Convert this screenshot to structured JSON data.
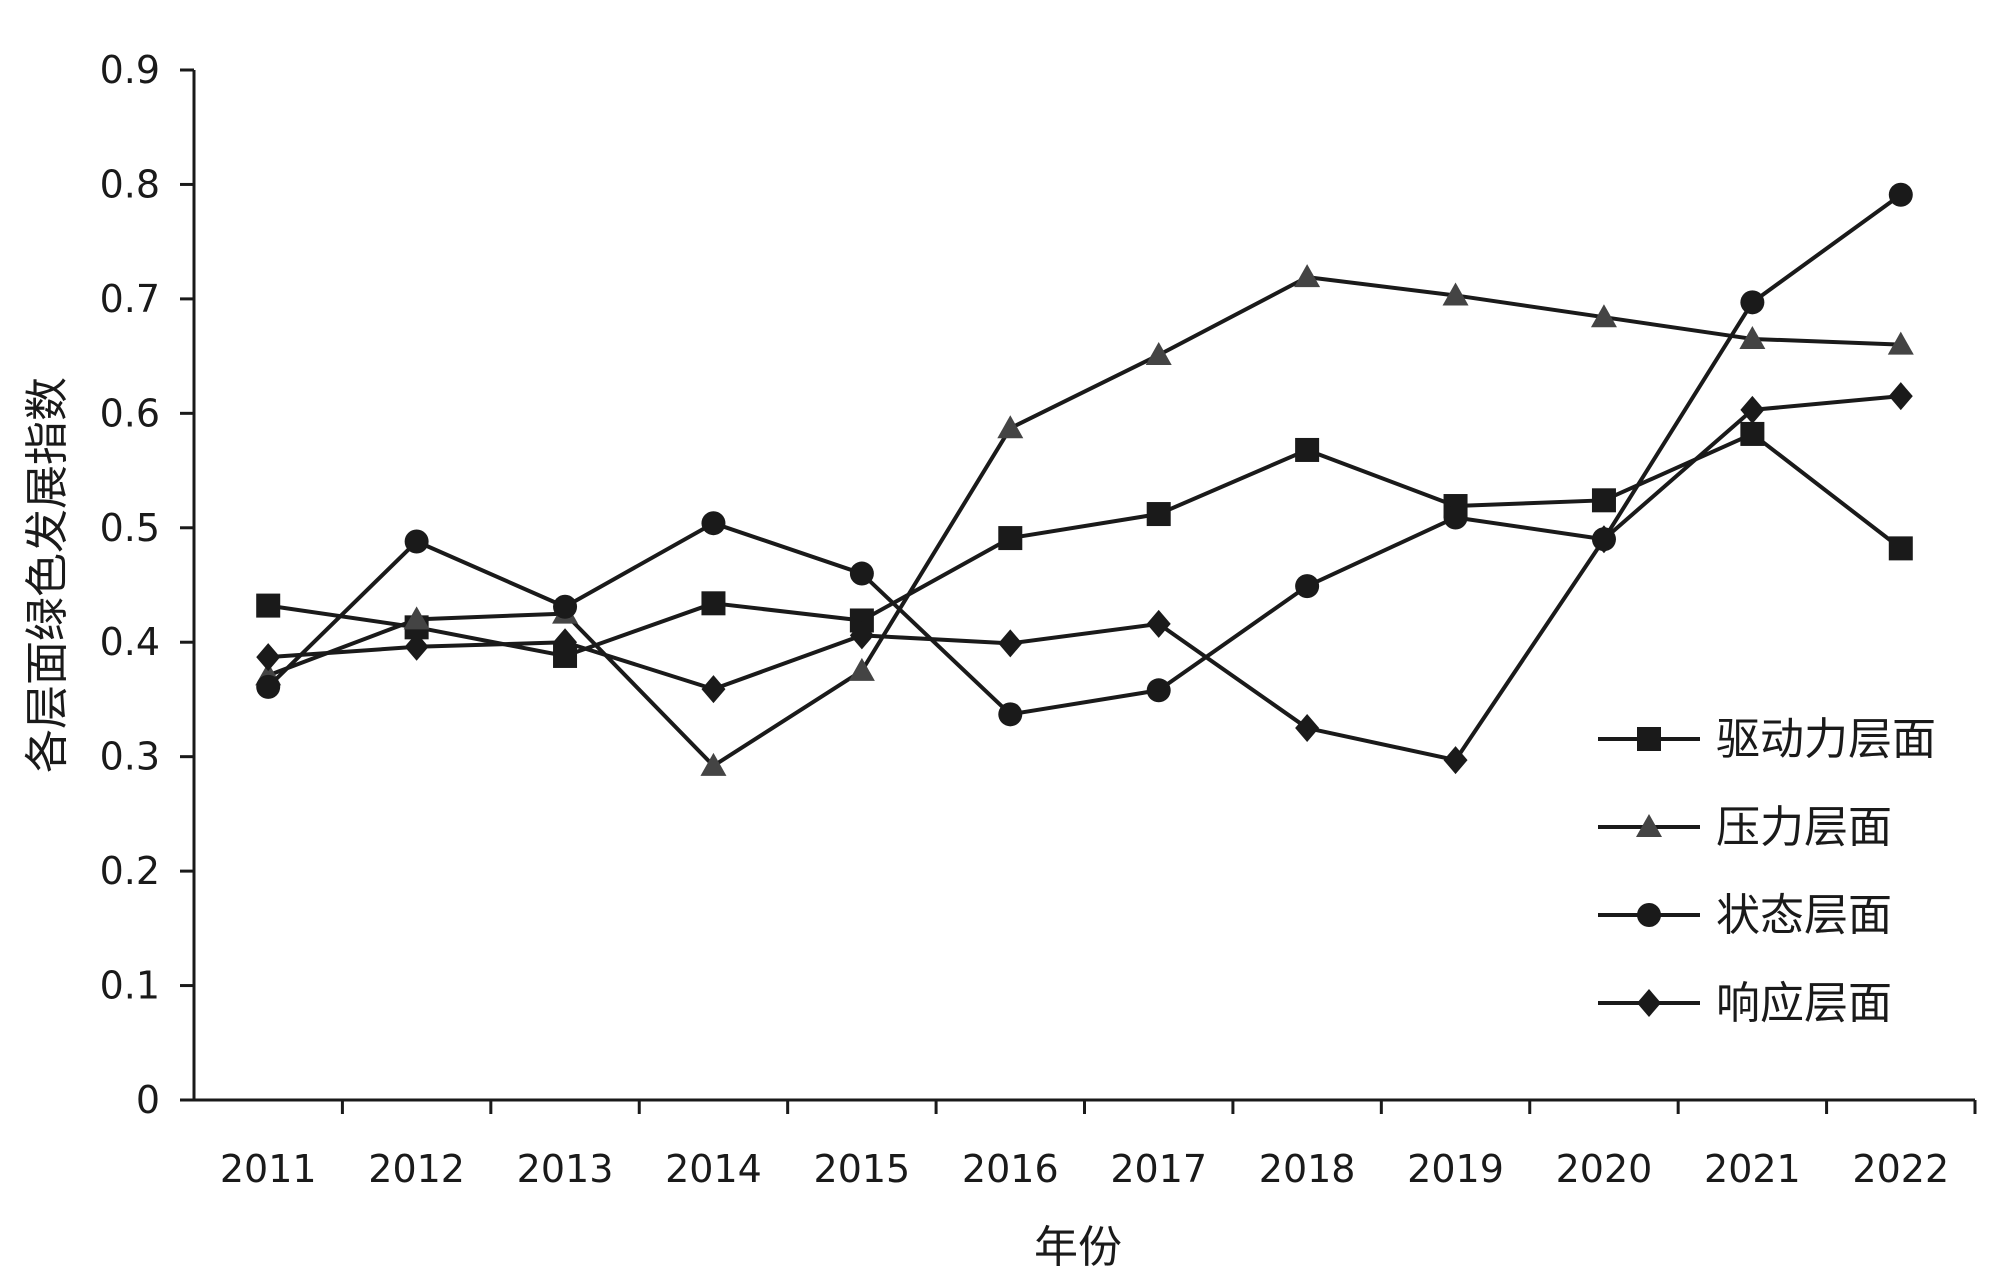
{
  "chart_data": {
    "type": "line",
    "title": "",
    "xlabel": "年份",
    "ylabel": "各层面绿色发展指数",
    "categories": [
      "2011",
      "2012",
      "2013",
      "2014",
      "2015",
      "2016",
      "2017",
      "2018",
      "2019",
      "2020",
      "2021",
      "2022"
    ],
    "ylim": [
      0,
      0.9
    ],
    "yticks": [
      "0",
      "0.1",
      "0.2",
      "0.3",
      "0.4",
      "0.5",
      "0.6",
      "0.7",
      "0.8",
      "0.9"
    ],
    "grid": false,
    "legend_position": "right",
    "series": [
      {
        "name": "驱动力层面",
        "marker": "square",
        "values": [
          0.432,
          0.413,
          0.388,
          0.434,
          0.419,
          0.491,
          0.512,
          0.568,
          0.519,
          0.524,
          0.582,
          0.482
        ]
      },
      {
        "name": "压力层面",
        "marker": "triangle",
        "values": [
          0.371,
          0.42,
          0.425,
          0.292,
          0.375,
          0.587,
          0.651,
          0.719,
          0.703,
          0.684,
          0.665,
          0.66
        ]
      },
      {
        "name": "状态层面",
        "marker": "circle",
        "values": [
          0.361,
          0.488,
          0.431,
          0.504,
          0.46,
          0.337,
          0.358,
          0.449,
          0.509,
          0.49,
          0.697,
          0.791
        ]
      },
      {
        "name": "响应层面",
        "marker": "diamond",
        "values": [
          0.387,
          0.396,
          0.4,
          0.359,
          0.406,
          0.399,
          0.416,
          0.325,
          0.297,
          0.49,
          0.603,
          0.615
        ]
      }
    ]
  }
}
